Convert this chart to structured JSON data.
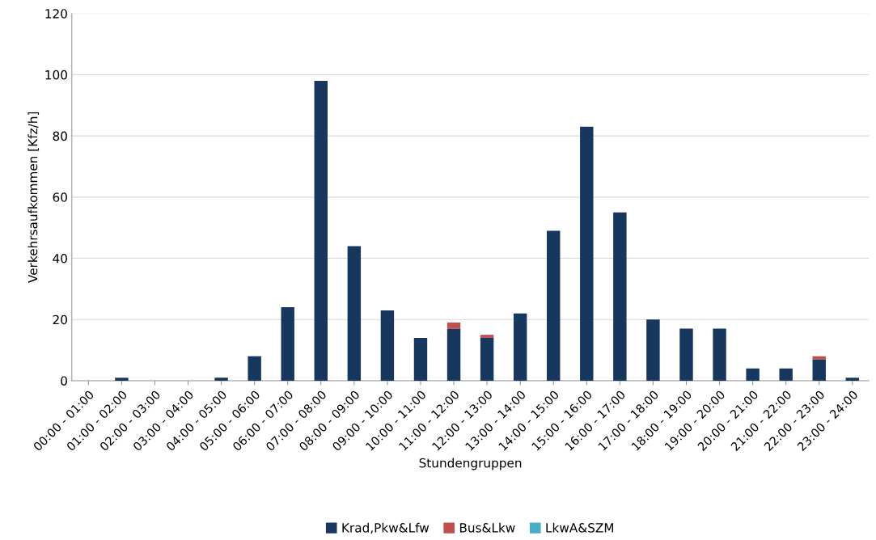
{
  "chart_data": {
    "type": "bar",
    "stacked": true,
    "xlabel": "Stundengruppen",
    "ylabel": "Verkehrsaufkommen [Kfz/h]",
    "categories": [
      "00:00 - 01:00",
      "01:00 - 02:00",
      "02:00 - 03:00",
      "03:00 - 04:00",
      "04:00 - 05:00",
      "05:00 - 06:00",
      "06:00 - 07:00",
      "07:00 - 08:00",
      "08:00 - 09:00",
      "09:00 - 10:00",
      "10:00 - 11:00",
      "11:00 - 12:00",
      "12:00 - 13:00",
      "13:00 - 14:00",
      "14:00 - 15:00",
      "15:00 - 16:00",
      "16:00 - 17:00",
      "17:00 - 18:00",
      "18:00 - 19:00",
      "19:00 - 20:00",
      "20:00 - 21:00",
      "21:00 - 22:00",
      "22:00 - 23:00",
      "23:00 - 24:00"
    ],
    "series": [
      {
        "name": "Krad,Pkw&Lfw",
        "color": "#17375e",
        "values": [
          0,
          1,
          0,
          0,
          1,
          8,
          24,
          98,
          44,
          23,
          14,
          17,
          14,
          22,
          49,
          83,
          55,
          20,
          17,
          17,
          4,
          4,
          7,
          1
        ]
      },
      {
        "name": "Bus&Lkw",
        "color": "#c0504d",
        "values": [
          0,
          0,
          0,
          0,
          0,
          0,
          0,
          0,
          0,
          0,
          0,
          2,
          1,
          0,
          0,
          0,
          0,
          0,
          0,
          0,
          0,
          0,
          1,
          0
        ]
      },
      {
        "name": "LkwA&SZM",
        "color": "#4bacc6",
        "values": [
          0,
          0,
          0,
          0,
          0,
          0,
          0,
          0,
          0,
          0,
          0,
          0,
          0,
          0,
          0,
          0,
          0,
          0,
          0,
          0,
          0,
          0,
          0,
          0
        ]
      }
    ],
    "ylim": [
      0,
      120
    ],
    "yticks": [
      0,
      20,
      40,
      60,
      80,
      100,
      120
    ],
    "grid": "y",
    "legend": "bottom"
  }
}
